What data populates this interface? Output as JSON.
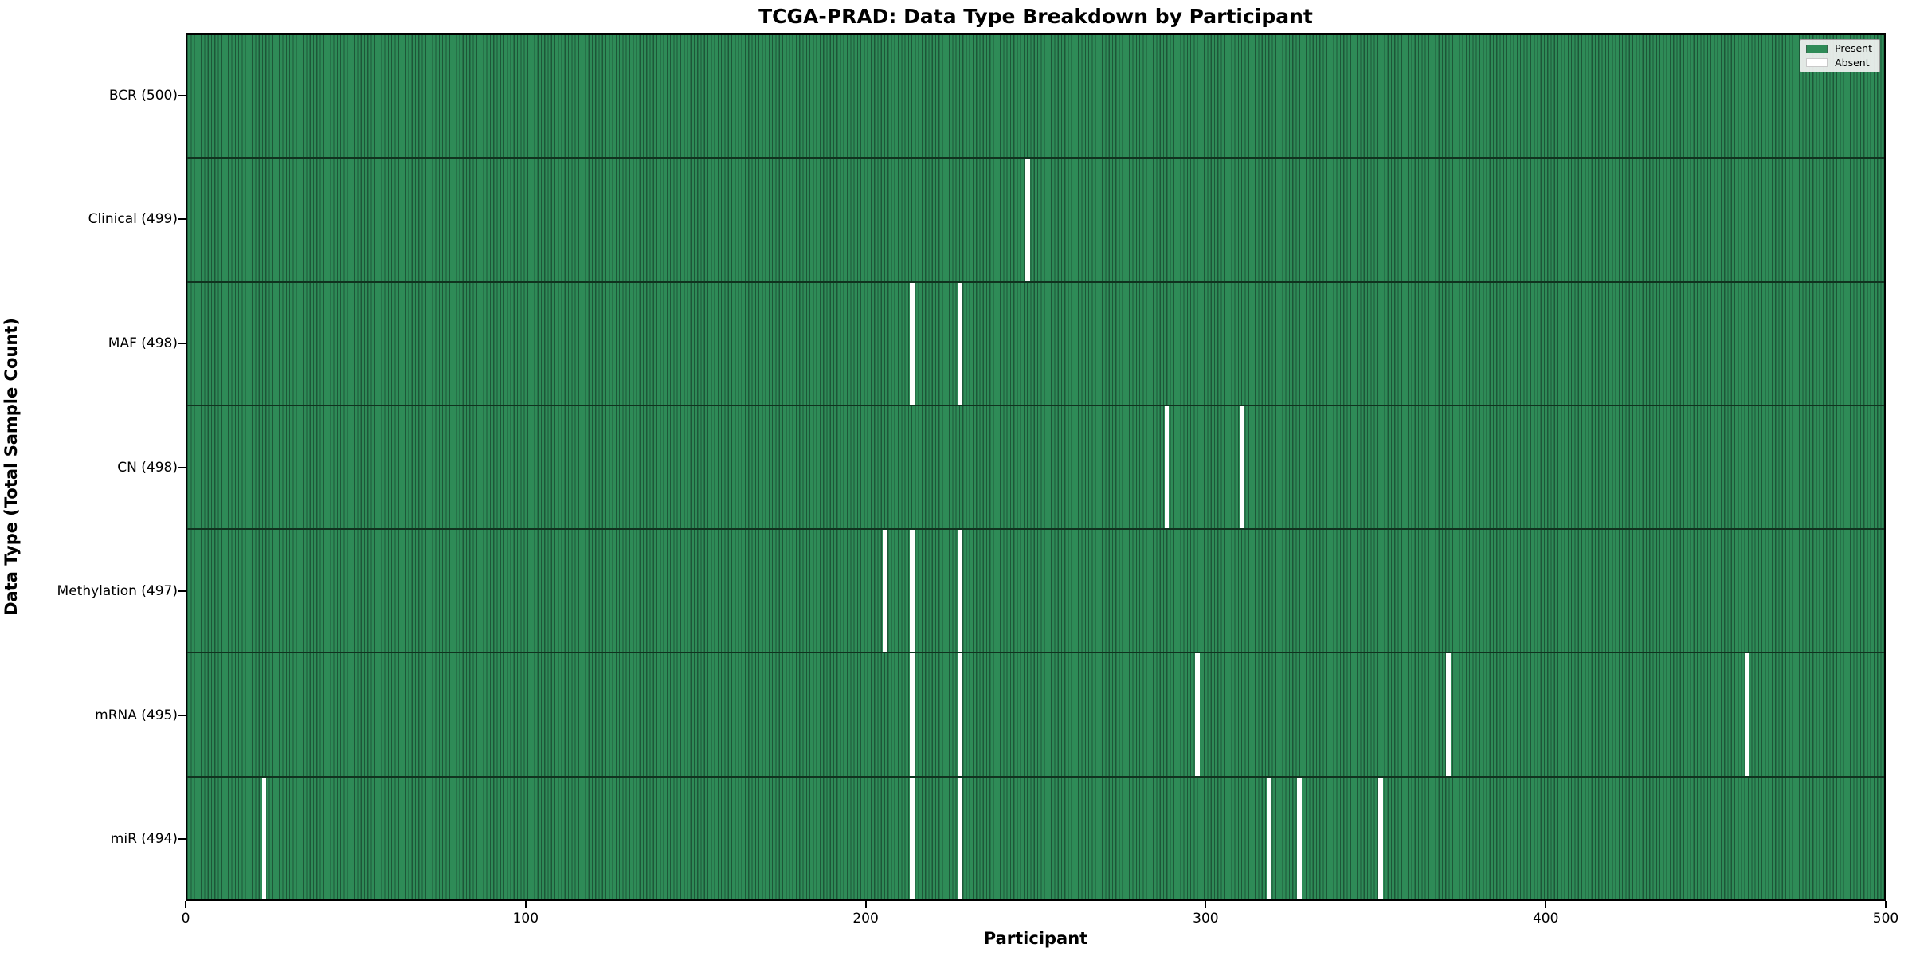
{
  "title": "TCGA-PRAD: Data Type Breakdown by Participant",
  "legend": {
    "present_label": "Present",
    "absent_label": "Absent"
  },
  "colors": {
    "present": "#2e8b57",
    "bar_edge": "#1d5738",
    "absent": "#ffffff",
    "legend_bg": "#f2f2f2"
  },
  "chart_data": {
    "type": "heatmap",
    "title": "TCGA-PRAD: Data Type Breakdown by Participant",
    "xlabel": "Participant",
    "ylabel": "Data Type (Total Sample Count)",
    "xlim": [
      0,
      500
    ],
    "x_ticks": [
      0,
      100,
      200,
      300,
      400,
      500
    ],
    "n_participants": 500,
    "grid": false,
    "legend_position": "upper right",
    "legend": [
      {
        "label": "Present",
        "color": "#2e8b57"
      },
      {
        "label": "Absent",
        "color": "#ffffff"
      }
    ],
    "rows": [
      {
        "label": "BCR (500)",
        "data_type": "BCR",
        "count": 500,
        "missing_participants": []
      },
      {
        "label": "Clinical (499)",
        "data_type": "Clinical",
        "count": 499,
        "missing_participants": [
          247
        ]
      },
      {
        "label": "MAF (498)",
        "data_type": "MAF",
        "count": 498,
        "missing_participants": [
          213,
          227
        ]
      },
      {
        "label": "CN (498)",
        "data_type": "CN",
        "count": 498,
        "missing_participants": [
          288,
          310
        ]
      },
      {
        "label": "Methylation (497)",
        "data_type": "Methylation",
        "count": 497,
        "missing_participants": [
          205,
          213,
          227
        ]
      },
      {
        "label": "mRNA (495)",
        "data_type": "mRNA",
        "count": 495,
        "missing_participants": [
          213,
          227,
          297,
          371,
          459
        ]
      },
      {
        "label": "miR (494)",
        "data_type": "miR",
        "count": 494,
        "missing_participants": [
          22,
          213,
          227,
          318,
          327,
          351
        ]
      }
    ]
  }
}
